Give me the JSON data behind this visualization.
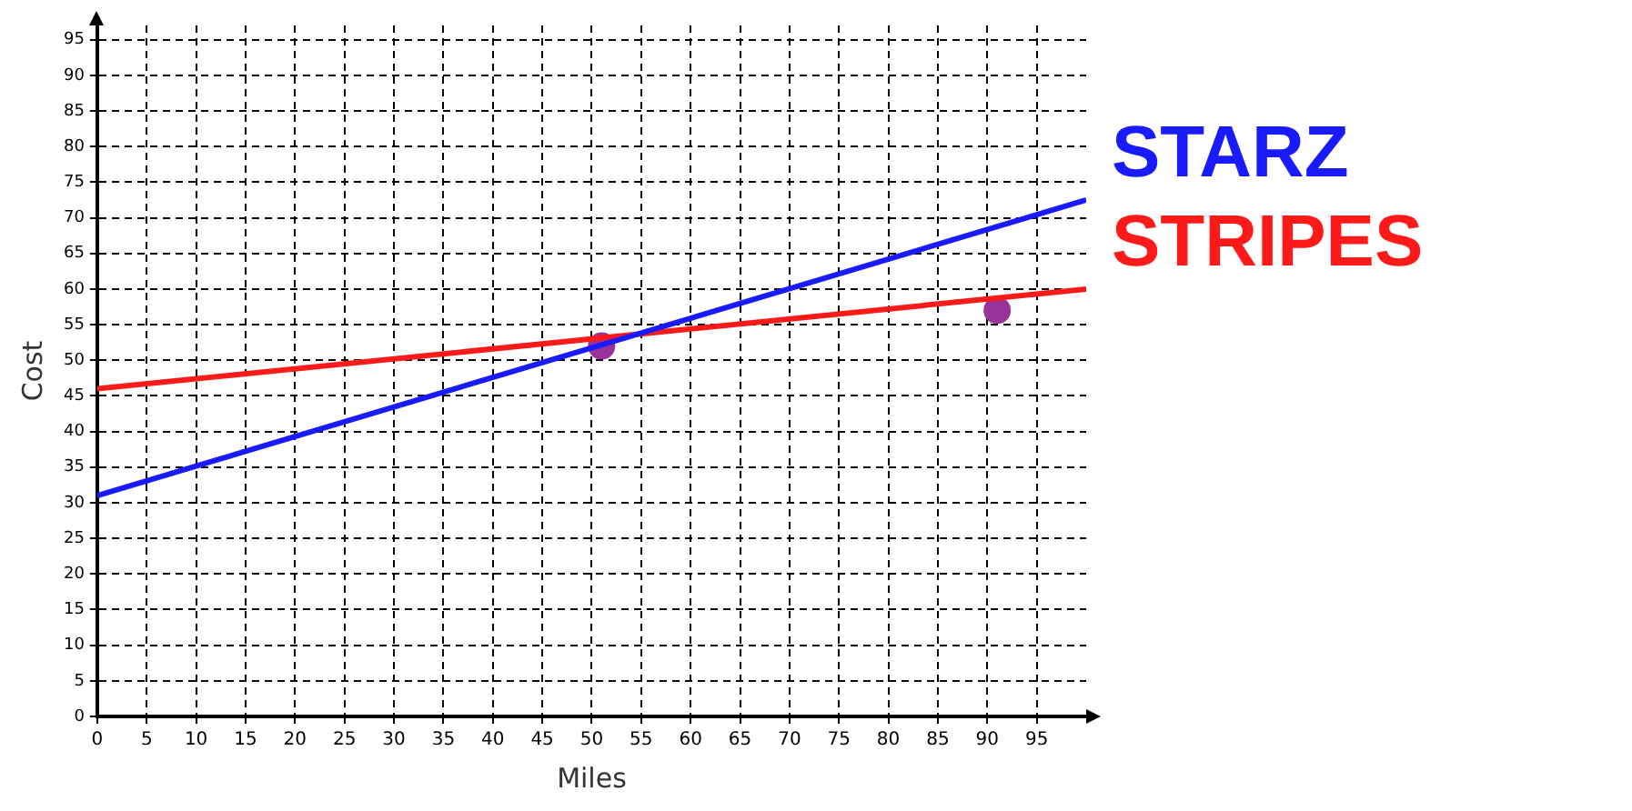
{
  "chart_data": {
    "type": "line",
    "xlabel": "Miles",
    "ylabel": "Cost",
    "xlim": [
      0,
      100
    ],
    "ylim": [
      0,
      97
    ],
    "xticks": [
      0,
      5,
      10,
      15,
      20,
      25,
      30,
      35,
      40,
      45,
      50,
      55,
      60,
      65,
      70,
      75,
      80,
      85,
      90,
      95
    ],
    "yticks": [
      0,
      5,
      10,
      15,
      20,
      25,
      30,
      35,
      40,
      45,
      50,
      55,
      60,
      65,
      70,
      75,
      80,
      85,
      90,
      95
    ],
    "grid": true,
    "legend": false,
    "line_style": "solid",
    "series": [
      {
        "name": "STARZ",
        "type": "line",
        "color": "#1a1aff",
        "x": [
          0,
          100
        ],
        "values": [
          31,
          72.5
        ],
        "marker": "none"
      },
      {
        "name": "STRIPES",
        "type": "line",
        "color": "#ff1a1a",
        "x": [
          0,
          100
        ],
        "values": [
          46,
          60
        ],
        "marker": "none"
      },
      {
        "type": "scatter",
        "color": "#993399",
        "x": [
          51,
          91
        ],
        "values": [
          52,
          57
        ],
        "marker": "circle"
      }
    ]
  }
}
